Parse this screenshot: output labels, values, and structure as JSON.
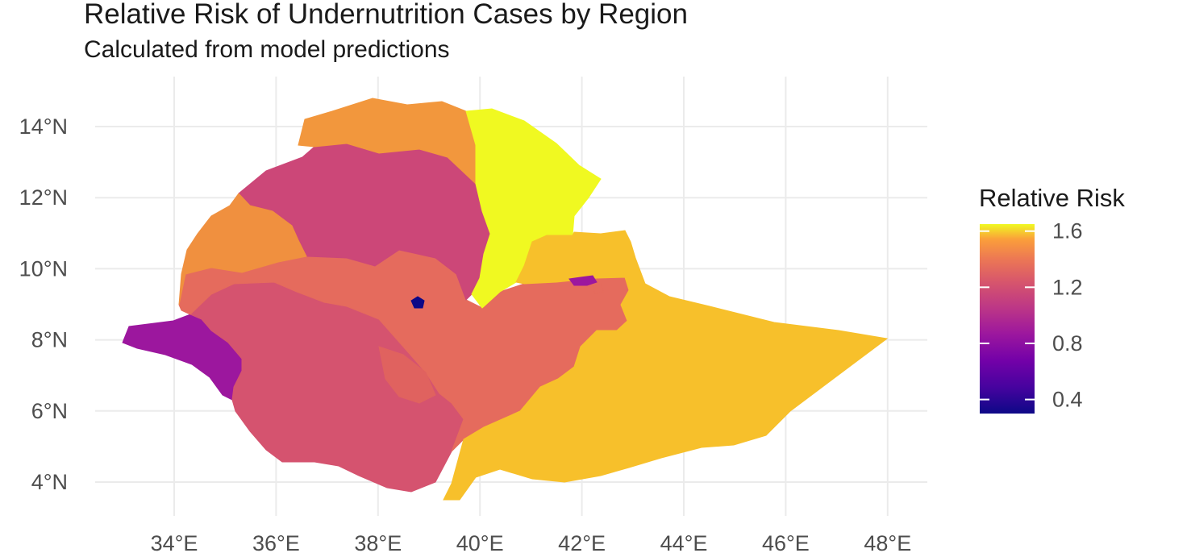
{
  "chart_data": {
    "type": "choropleth-map",
    "title": "Relative Risk of Undernutrition Cases by Region",
    "subtitle": "Calculated from model predictions",
    "x_ticks": [
      "34°E",
      "36°E",
      "38°E",
      "40°E",
      "42°E",
      "44°E",
      "46°E",
      "48°E"
    ],
    "y_ticks": [
      "14°N",
      "12°N",
      "10°N",
      "8°N",
      "6°N",
      "4°N"
    ],
    "x_tick_values": [
      34,
      36,
      38,
      40,
      42,
      44,
      46,
      48
    ],
    "y_tick_values": [
      14,
      12,
      10,
      8,
      6,
      4
    ],
    "grid": true,
    "legend": {
      "title": "Relative Risk",
      "position": "right",
      "colormap": "plasma",
      "range": [
        0.3,
        1.65
      ],
      "labels": [
        "1.6",
        "1.2",
        "0.8",
        "0.4"
      ],
      "values": [
        1.6,
        1.2,
        0.8,
        0.4
      ]
    },
    "regions": [
      {
        "id": "tigray",
        "value": 1.45,
        "color": "#f2973d"
      },
      {
        "id": "afar",
        "value": 1.63,
        "color": "#f0f921"
      },
      {
        "id": "amhara",
        "value": 1.0,
        "color": "#cc4778"
      },
      {
        "id": "benishangul-gumuz",
        "value": 1.4,
        "color": "#f0903f"
      },
      {
        "id": "oromia",
        "value": 1.25,
        "color": "#e56b5d"
      },
      {
        "id": "snnpr",
        "value": 1.1,
        "color": "#d5536f"
      },
      {
        "id": "gambela",
        "value": 0.8,
        "color": "#9c179e"
      },
      {
        "id": "somali",
        "value": 1.55,
        "color": "#f7c02b"
      },
      {
        "id": "addis-ababa",
        "value": 0.35,
        "color": "#0d0887"
      },
      {
        "id": "dire-dawa",
        "value": 0.8,
        "color": "#9c179e"
      },
      {
        "id": "harari",
        "value": 1.25,
        "color": "#e56b5d"
      },
      {
        "id": "sidama",
        "value": 1.2,
        "color": "#e0625f"
      }
    ]
  }
}
